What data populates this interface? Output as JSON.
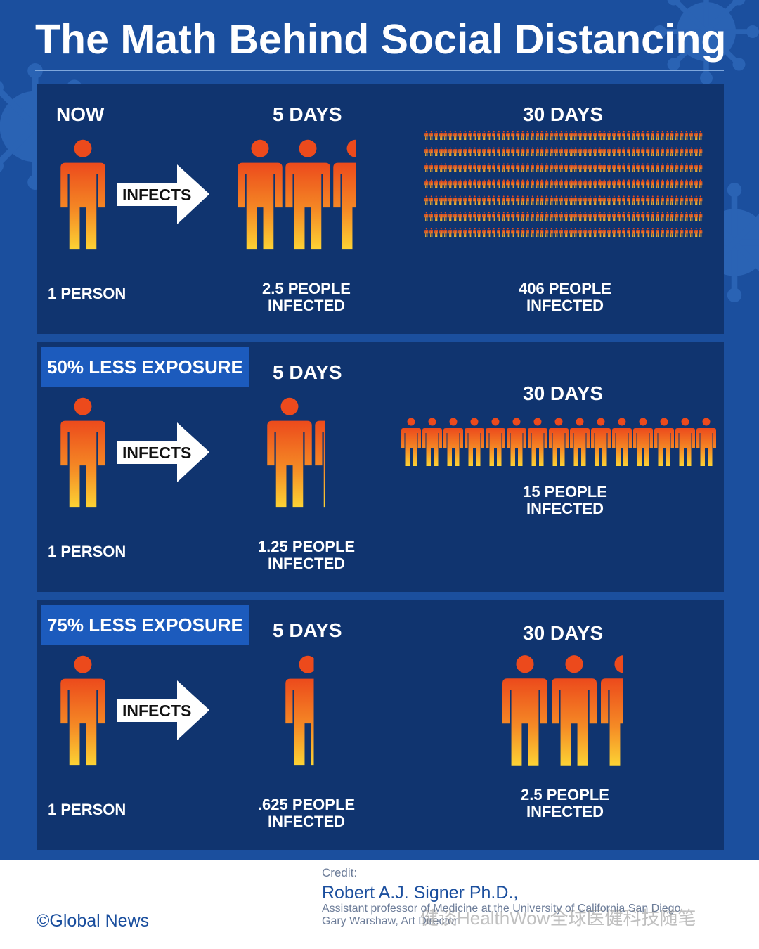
{
  "title": "The Math Behind Social Distancing",
  "colors": {
    "background": "#1b4f9e",
    "panel": "#10346f",
    "tag": "#1c5bbd",
    "figure_top": "#ec4a1c",
    "figure_bottom": "#fcd234"
  },
  "panels": [
    {
      "tag": "NOW",
      "source_label": "1 PERSON",
      "arrow_label": "INFECTS",
      "day5": {
        "header": "5 DAYS",
        "caption": [
          "2.5 PEOPLE",
          "INFECTED"
        ],
        "people": 2.5
      },
      "day30": {
        "header": "30 DAYS",
        "caption": [
          "406 PEOPLE",
          "INFECTED"
        ],
        "people": 406
      }
    },
    {
      "tag": "50% LESS EXPOSURE",
      "source_label": "1 PERSON",
      "arrow_label": "INFECTS",
      "day5": {
        "header": "5 DAYS",
        "caption": [
          "1.25 PEOPLE",
          "INFECTED"
        ],
        "people": 1.25
      },
      "day30": {
        "header": "30 DAYS",
        "caption": [
          "15 PEOPLE",
          "INFECTED"
        ],
        "people": 15
      }
    },
    {
      "tag": "75% LESS EXPOSURE",
      "source_label": "1 PERSON",
      "arrow_label": "INFECTS",
      "day5": {
        "header": "5 DAYS",
        "caption": [
          ".625 PEOPLE",
          "INFECTED"
        ],
        "people": 0.625
      },
      "day30": {
        "header": "30 DAYS",
        "caption": [
          "2.5 PEOPLE",
          "INFECTED"
        ],
        "people": 2.5
      }
    }
  ],
  "footer": {
    "copyright": "©Global News",
    "credit_label": "Credit:",
    "credit_name": "Robert A.J. Signer Ph.D.,",
    "credit_line1": "Assistant professor of Medicine at the University of California San Diego",
    "credit_line2": "Gary Warshaw, Art Director",
    "watermark": "健谈HealthWow全球医健科技随笔"
  }
}
